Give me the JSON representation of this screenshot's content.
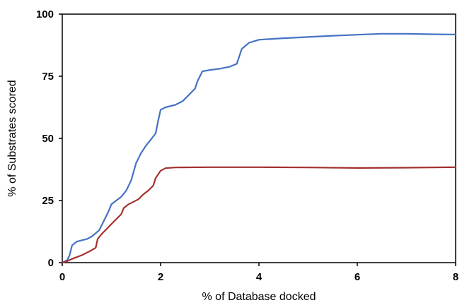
{
  "chart_data": {
    "type": "line",
    "xlabel": "% of Database docked",
    "ylabel": "% of Substrates scored",
    "xlim": [
      0,
      8
    ],
    "ylim": [
      0,
      100
    ],
    "x_ticks": [
      0,
      2,
      4,
      6,
      8
    ],
    "y_ticks": [
      0,
      25,
      50,
      75,
      100
    ],
    "grid": false,
    "legend": "none",
    "series": [
      {
        "color": "#4472C4",
        "points": [
          [
            0,
            0
          ],
          [
            0.1,
            1
          ],
          [
            0.15,
            3
          ],
          [
            0.2,
            7
          ],
          [
            0.3,
            8.5
          ],
          [
            0.5,
            9.5
          ],
          [
            0.6,
            10.5
          ],
          [
            0.75,
            13
          ],
          [
            0.85,
            17
          ],
          [
            0.95,
            21
          ],
          [
            1.0,
            23.5
          ],
          [
            1.1,
            25
          ],
          [
            1.2,
            26.5
          ],
          [
            1.3,
            29
          ],
          [
            1.4,
            33
          ],
          [
            1.5,
            40
          ],
          [
            1.6,
            44
          ],
          [
            1.7,
            47
          ],
          [
            1.8,
            49.5
          ],
          [
            1.9,
            52
          ],
          [
            1.95,
            57
          ],
          [
            2.0,
            61.5
          ],
          [
            2.1,
            62.5
          ],
          [
            2.3,
            63.5
          ],
          [
            2.45,
            65
          ],
          [
            2.6,
            68
          ],
          [
            2.7,
            70
          ],
          [
            2.75,
            73
          ],
          [
            2.85,
            77
          ],
          [
            3.0,
            77.5
          ],
          [
            3.2,
            78
          ],
          [
            3.4,
            78.8
          ],
          [
            3.55,
            80
          ],
          [
            3.65,
            86
          ],
          [
            3.8,
            88.5
          ],
          [
            4.0,
            89.7
          ],
          [
            4.5,
            90.3
          ],
          [
            5.0,
            90.8
          ],
          [
            5.5,
            91.3
          ],
          [
            6.0,
            91.7
          ],
          [
            6.5,
            92.1
          ],
          [
            7.0,
            92.1
          ],
          [
            7.5,
            91.9
          ],
          [
            8.0,
            91.8
          ]
        ]
      },
      {
        "color": "#A3302E",
        "points": [
          [
            0,
            0
          ],
          [
            0.1,
            0.6
          ],
          [
            0.2,
            1.5
          ],
          [
            0.4,
            3
          ],
          [
            0.55,
            4.5
          ],
          [
            0.68,
            6
          ],
          [
            0.72,
            9.5
          ],
          [
            0.8,
            11.5
          ],
          [
            0.9,
            13.5
          ],
          [
            1.0,
            15.5
          ],
          [
            1.1,
            17.5
          ],
          [
            1.2,
            19.5
          ],
          [
            1.25,
            22
          ],
          [
            1.35,
            23.5
          ],
          [
            1.45,
            24.5
          ],
          [
            1.55,
            25.5
          ],
          [
            1.65,
            27.5
          ],
          [
            1.75,
            29
          ],
          [
            1.85,
            31
          ],
          [
            1.9,
            34
          ],
          [
            2.0,
            37
          ],
          [
            2.1,
            38
          ],
          [
            2.3,
            38.3
          ],
          [
            3.0,
            38.4
          ],
          [
            4.0,
            38.4
          ],
          [
            5.0,
            38.3
          ],
          [
            6.0,
            38.1
          ],
          [
            7.0,
            38.2
          ],
          [
            8.0,
            38.4
          ]
        ]
      }
    ]
  }
}
